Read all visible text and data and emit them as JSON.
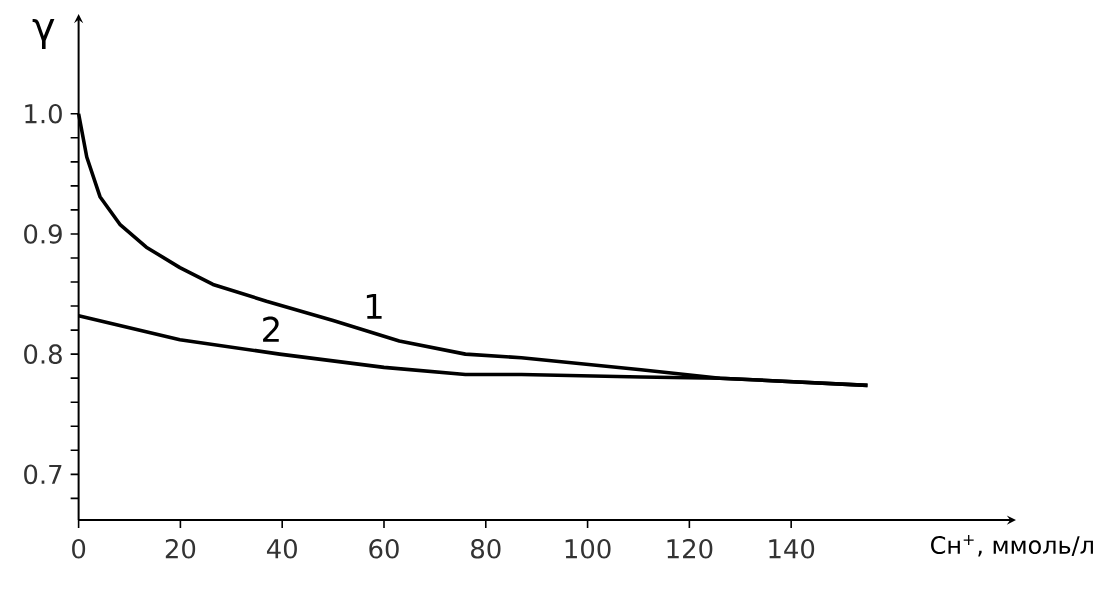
{
  "chart_data": {
    "type": "line",
    "xlabel": "Cн$^{+}$, ммоль/л",
    "ylabel": "γ",
    "xlim": [
      0,
      183
    ],
    "ylim": [
      0.662,
      1.078
    ],
    "xticks": [
      0,
      20,
      40,
      60,
      80,
      100,
      120,
      140
    ],
    "yticks": [
      {
        "value": 0.68,
        "label": null
      },
      0.7,
      {
        "value": 0.72,
        "label": null
      },
      {
        "value": 0.74,
        "label": null
      },
      {
        "value": 0.76,
        "label": null
      },
      {
        "value": 0.78,
        "label": null
      },
      0.8,
      {
        "value": 0.82,
        "label": null
      },
      {
        "value": 0.84,
        "label": null
      },
      {
        "value": 0.86,
        "label": null
      },
      {
        "value": 0.88,
        "label": null
      },
      0.9,
      {
        "value": 0.92,
        "label": null
      },
      {
        "value": 0.94,
        "label": null
      },
      {
        "value": 0.96,
        "label": null
      },
      {
        "value": 0.98,
        "label": null
      },
      {
        "value": 1.0,
        "label": "1.0"
      }
    ],
    "grid": false,
    "marker": "none",
    "line_style": "solid",
    "series": [
      {
        "name": "1",
        "color": "#000000",
        "x": [
          0,
          1.6,
          4.2,
          8.1,
          13.3,
          19.9,
          26.4,
          36.9,
          50,
          63,
          76,
          87,
          110.5,
          126,
          155
        ],
        "values": [
          1.0,
          0.964,
          0.931,
          0.908,
          0.889,
          0.872,
          0.858,
          0.844,
          0.828,
          0.811,
          0.8,
          0.797,
          0.787,
          0.78,
          0.774
        ]
      },
      {
        "name": "2",
        "color": "#000000",
        "x": [
          0,
          19.9,
          39.5,
          60,
          76,
          87,
          110.5,
          126,
          155
        ],
        "values": [
          0.832,
          0.812,
          0.8,
          0.789,
          0.783,
          0.783,
          0.781,
          0.78,
          0.774
        ]
      }
    ]
  }
}
